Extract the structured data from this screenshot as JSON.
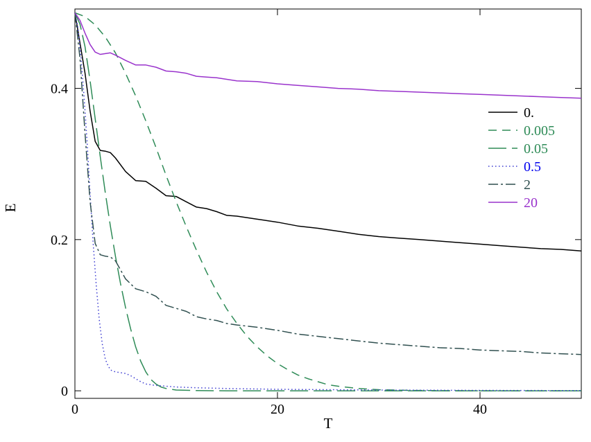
{
  "chart_data": {
    "type": "line",
    "title": "",
    "xlabel": "T",
    "ylabel": "E",
    "xlim": [
      0,
      50
    ],
    "ylim": [
      -0.01,
      0.505
    ],
    "xticks": [
      0,
      20,
      40
    ],
    "xtick_labels": [
      "0",
      "20",
      "40"
    ],
    "yticks": [
      0,
      0.2,
      0.4
    ],
    "ytick_labels": [
      "0",
      "0.2",
      "0.4"
    ],
    "grid": false,
    "legend_position": "right",
    "series": [
      {
        "name": "0.",
        "color": "#000000",
        "label_color": "#000000",
        "dash": "solid",
        "points": [
          [
            0,
            0.5
          ],
          [
            0.5,
            0.46
          ],
          [
            1,
            0.42
          ],
          [
            1.5,
            0.37
          ],
          [
            2,
            0.33
          ],
          [
            2.5,
            0.318
          ],
          [
            3,
            0.317
          ],
          [
            3.5,
            0.315
          ],
          [
            4,
            0.308
          ],
          [
            5,
            0.29
          ],
          [
            6,
            0.278
          ],
          [
            7,
            0.277
          ],
          [
            8,
            0.268
          ],
          [
            9,
            0.258
          ],
          [
            10,
            0.257
          ],
          [
            11,
            0.25
          ],
          [
            12,
            0.243
          ],
          [
            13,
            0.241
          ],
          [
            14,
            0.237
          ],
          [
            15,
            0.232
          ],
          [
            16,
            0.231
          ],
          [
            18,
            0.227
          ],
          [
            20,
            0.223
          ],
          [
            22,
            0.218
          ],
          [
            24,
            0.215
          ],
          [
            26,
            0.211
          ],
          [
            28,
            0.207
          ],
          [
            30,
            0.204
          ],
          [
            32,
            0.202
          ],
          [
            34,
            0.2
          ],
          [
            36,
            0.198
          ],
          [
            38,
            0.196
          ],
          [
            40,
            0.194
          ],
          [
            42,
            0.192
          ],
          [
            44,
            0.19
          ],
          [
            46,
            0.188
          ],
          [
            48,
            0.187
          ],
          [
            50,
            0.185
          ]
        ]
      },
      {
        "name": "0.005",
        "color": "#2e8b57",
        "label_color": "#2e8b57",
        "dash": "12 8",
        "points": [
          [
            0,
            0.5
          ],
          [
            1,
            0.495
          ],
          [
            2,
            0.484
          ],
          [
            3,
            0.468
          ],
          [
            4,
            0.447
          ],
          [
            5,
            0.42
          ],
          [
            6,
            0.39
          ],
          [
            7,
            0.357
          ],
          [
            8,
            0.322
          ],
          [
            9,
            0.285
          ],
          [
            10,
            0.25
          ],
          [
            11,
            0.217
          ],
          [
            12,
            0.186
          ],
          [
            13,
            0.157
          ],
          [
            14,
            0.131
          ],
          [
            15,
            0.108
          ],
          [
            16,
            0.089
          ],
          [
            17,
            0.072
          ],
          [
            18,
            0.058
          ],
          [
            19,
            0.046
          ],
          [
            20,
            0.036
          ],
          [
            21,
            0.028
          ],
          [
            22,
            0.021
          ],
          [
            23,
            0.016
          ],
          [
            24,
            0.012
          ],
          [
            25,
            0.008
          ],
          [
            26,
            0.006
          ],
          [
            28,
            0.003
          ],
          [
            30,
            0.0015
          ],
          [
            33,
            0.0005
          ],
          [
            36,
            0.0002
          ],
          [
            40,
            0
          ],
          [
            50,
            0
          ]
        ]
      },
      {
        "name": "0.05",
        "color": "#2e8b57",
        "label_color": "#2e8b57",
        "dash": "26 8",
        "points": [
          [
            0,
            0.5
          ],
          [
            0.5,
            0.485
          ],
          [
            1,
            0.455
          ],
          [
            1.5,
            0.41
          ],
          [
            2,
            0.36
          ],
          [
            2.5,
            0.31
          ],
          [
            3,
            0.262
          ],
          [
            3.5,
            0.218
          ],
          [
            4,
            0.178
          ],
          [
            4.5,
            0.142
          ],
          [
            5,
            0.11
          ],
          [
            5.5,
            0.082
          ],
          [
            6,
            0.058
          ],
          [
            6.5,
            0.039
          ],
          [
            7,
            0.025
          ],
          [
            7.5,
            0.015
          ],
          [
            8,
            0.009
          ],
          [
            8.5,
            0.005
          ],
          [
            9,
            0.003
          ],
          [
            10,
            0.001
          ],
          [
            12,
            0.0003
          ],
          [
            15,
            0
          ],
          [
            50,
            0
          ]
        ]
      },
      {
        "name": "0.5",
        "color": "#3a3ad0",
        "label_color": "#0000ee",
        "dash": "1.5 3.5",
        "points": [
          [
            0,
            0.5
          ],
          [
            0.3,
            0.48
          ],
          [
            0.6,
            0.44
          ],
          [
            0.9,
            0.39
          ],
          [
            1.2,
            0.33
          ],
          [
            1.5,
            0.26
          ],
          [
            1.8,
            0.195
          ],
          [
            2.1,
            0.14
          ],
          [
            2.4,
            0.095
          ],
          [
            2.7,
            0.062
          ],
          [
            3,
            0.042
          ],
          [
            3.3,
            0.032
          ],
          [
            3.6,
            0.027
          ],
          [
            4,
            0.025
          ],
          [
            4.5,
            0.024
          ],
          [
            5,
            0.023
          ],
          [
            5.5,
            0.02
          ],
          [
            6,
            0.016
          ],
          [
            6.5,
            0.012
          ],
          [
            7,
            0.009
          ],
          [
            8,
            0.007
          ],
          [
            9,
            0.006
          ],
          [
            10,
            0.005
          ],
          [
            12,
            0.004
          ],
          [
            15,
            0.003
          ],
          [
            20,
            0.002
          ],
          [
            25,
            0.0015
          ],
          [
            30,
            0.001
          ],
          [
            40,
            0.0005
          ],
          [
            50,
            0.0003
          ]
        ]
      },
      {
        "name": "2",
        "color": "#2f4f4f",
        "label_color": "#2f4f4f",
        "dash": "14 4 3 4",
        "points": [
          [
            0,
            0.5
          ],
          [
            0.5,
            0.44
          ],
          [
            1,
            0.34
          ],
          [
            1.5,
            0.25
          ],
          [
            2,
            0.195
          ],
          [
            2.5,
            0.18
          ],
          [
            3,
            0.178
          ],
          [
            3.5,
            0.177
          ],
          [
            4,
            0.172
          ],
          [
            4.5,
            0.16
          ],
          [
            5,
            0.148
          ],
          [
            6,
            0.135
          ],
          [
            7,
            0.131
          ],
          [
            8,
            0.125
          ],
          [
            9,
            0.113
          ],
          [
            10,
            0.109
          ],
          [
            11,
            0.105
          ],
          [
            12,
            0.098
          ],
          [
            13,
            0.095
          ],
          [
            14,
            0.093
          ],
          [
            15,
            0.089
          ],
          [
            16,
            0.087
          ],
          [
            18,
            0.084
          ],
          [
            20,
            0.08
          ],
          [
            22,
            0.075
          ],
          [
            24,
            0.072
          ],
          [
            26,
            0.069
          ],
          [
            28,
            0.066
          ],
          [
            30,
            0.063
          ],
          [
            32,
            0.061
          ],
          [
            34,
            0.059
          ],
          [
            36,
            0.057
          ],
          [
            38,
            0.056
          ],
          [
            40,
            0.054
          ],
          [
            42,
            0.053
          ],
          [
            44,
            0.052
          ],
          [
            46,
            0.05
          ],
          [
            48,
            0.049
          ],
          [
            50,
            0.048
          ]
        ]
      },
      {
        "name": "20",
        "color": "#9932cc",
        "label_color": "#9932cc",
        "dash": "solid",
        "points": [
          [
            0,
            0.5
          ],
          [
            0.5,
            0.49
          ],
          [
            1,
            0.473
          ],
          [
            1.5,
            0.458
          ],
          [
            2,
            0.448
          ],
          [
            2.5,
            0.445
          ],
          [
            3,
            0.446
          ],
          [
            3.5,
            0.447
          ],
          [
            4,
            0.444
          ],
          [
            5,
            0.437
          ],
          [
            6,
            0.431
          ],
          [
            7,
            0.431
          ],
          [
            8,
            0.428
          ],
          [
            9,
            0.423
          ],
          [
            10,
            0.422
          ],
          [
            11,
            0.42
          ],
          [
            12,
            0.416
          ],
          [
            13,
            0.415
          ],
          [
            14,
            0.414
          ],
          [
            15,
            0.412
          ],
          [
            16,
            0.41
          ],
          [
            18,
            0.409
          ],
          [
            20,
            0.406
          ],
          [
            22,
            0.404
          ],
          [
            24,
            0.402
          ],
          [
            26,
            0.4
          ],
          [
            28,
            0.399
          ],
          [
            30,
            0.397
          ],
          [
            32,
            0.396
          ],
          [
            34,
            0.395
          ],
          [
            36,
            0.394
          ],
          [
            38,
            0.393
          ],
          [
            40,
            0.392
          ],
          [
            42,
            0.391
          ],
          [
            44,
            0.39
          ],
          [
            46,
            0.389
          ],
          [
            48,
            0.388
          ],
          [
            50,
            0.387
          ]
        ]
      }
    ]
  }
}
